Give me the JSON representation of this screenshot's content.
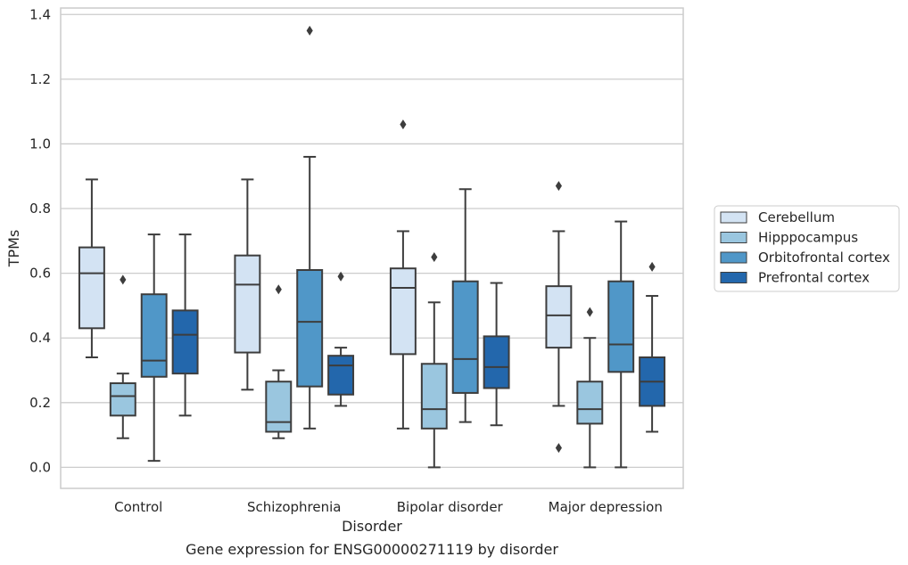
{
  "chart_data": {
    "type": "boxplot",
    "title": "Gene expression for ENSG00000271119 by disorder",
    "xlabel": "Disorder",
    "ylabel": "TPMs",
    "ylim": [
      -0.065,
      1.42
    ],
    "yticks": [
      0.0,
      0.2,
      0.4,
      0.6,
      0.8,
      1.0,
      1.2,
      1.4
    ],
    "ytick_labels": [
      "0.0",
      "0.2",
      "0.4",
      "0.6",
      "0.8",
      "1.0",
      "1.2",
      "1.4"
    ],
    "grid": "horizontal",
    "legend_placement": "right, outside plot",
    "categories": [
      "Control",
      "Schizophrenia",
      "Bipolar disorder",
      "Major depression"
    ],
    "series": [
      {
        "name": "Cerebellum",
        "color": "#d3e3f3",
        "boxes": [
          {
            "whislo": 0.34,
            "q1": 0.43,
            "med": 0.6,
            "q3": 0.68,
            "whishi": 0.89,
            "fliers": []
          },
          {
            "whislo": 0.24,
            "q1": 0.355,
            "med": 0.565,
            "q3": 0.655,
            "whishi": 0.89,
            "fliers": []
          },
          {
            "whislo": 0.12,
            "q1": 0.35,
            "med": 0.555,
            "q3": 0.615,
            "whishi": 0.73,
            "fliers": [
              1.06
            ]
          },
          {
            "whislo": 0.19,
            "q1": 0.37,
            "med": 0.47,
            "q3": 0.56,
            "whishi": 0.73,
            "fliers": [
              0.87,
              0.06
            ]
          }
        ]
      },
      {
        "name": "Hipppocampus",
        "color": "#9ac6df",
        "boxes": [
          {
            "whislo": 0.09,
            "q1": 0.16,
            "med": 0.22,
            "q3": 0.26,
            "whishi": 0.29,
            "fliers": [
              0.58
            ]
          },
          {
            "whislo": 0.09,
            "q1": 0.11,
            "med": 0.14,
            "q3": 0.265,
            "whishi": 0.3,
            "fliers": [
              0.55
            ]
          },
          {
            "whislo": 0.0,
            "q1": 0.12,
            "med": 0.18,
            "q3": 0.32,
            "whishi": 0.51,
            "fliers": [
              0.65
            ]
          },
          {
            "whislo": 0.0,
            "q1": 0.135,
            "med": 0.18,
            "q3": 0.265,
            "whishi": 0.4,
            "fliers": [
              0.48
            ]
          }
        ]
      },
      {
        "name": "Orbitofrontal cortex",
        "color": "#5097c8",
        "boxes": [
          {
            "whislo": 0.02,
            "q1": 0.28,
            "med": 0.33,
            "q3": 0.535,
            "whishi": 0.72,
            "fliers": []
          },
          {
            "whislo": 0.12,
            "q1": 0.25,
            "med": 0.45,
            "q3": 0.61,
            "whishi": 0.96,
            "fliers": [
              1.35
            ]
          },
          {
            "whislo": 0.14,
            "q1": 0.23,
            "med": 0.335,
            "q3": 0.575,
            "whishi": 0.86,
            "fliers": []
          },
          {
            "whislo": 0.0,
            "q1": 0.295,
            "med": 0.38,
            "q3": 0.575,
            "whishi": 0.76,
            "fliers": []
          }
        ]
      },
      {
        "name": "Prefrontal cortex",
        "color": "#2367ac",
        "boxes": [
          {
            "whislo": 0.16,
            "q1": 0.29,
            "med": 0.41,
            "q3": 0.485,
            "whishi": 0.72,
            "fliers": []
          },
          {
            "whislo": 0.19,
            "q1": 0.225,
            "med": 0.315,
            "q3": 0.345,
            "whishi": 0.37,
            "fliers": [
              0.59
            ]
          },
          {
            "whislo": 0.13,
            "q1": 0.245,
            "med": 0.31,
            "q3": 0.405,
            "whishi": 0.57,
            "fliers": []
          },
          {
            "whislo": 0.11,
            "q1": 0.19,
            "med": 0.265,
            "q3": 0.34,
            "whishi": 0.53,
            "fliers": [
              0.62
            ]
          }
        ]
      }
    ]
  }
}
